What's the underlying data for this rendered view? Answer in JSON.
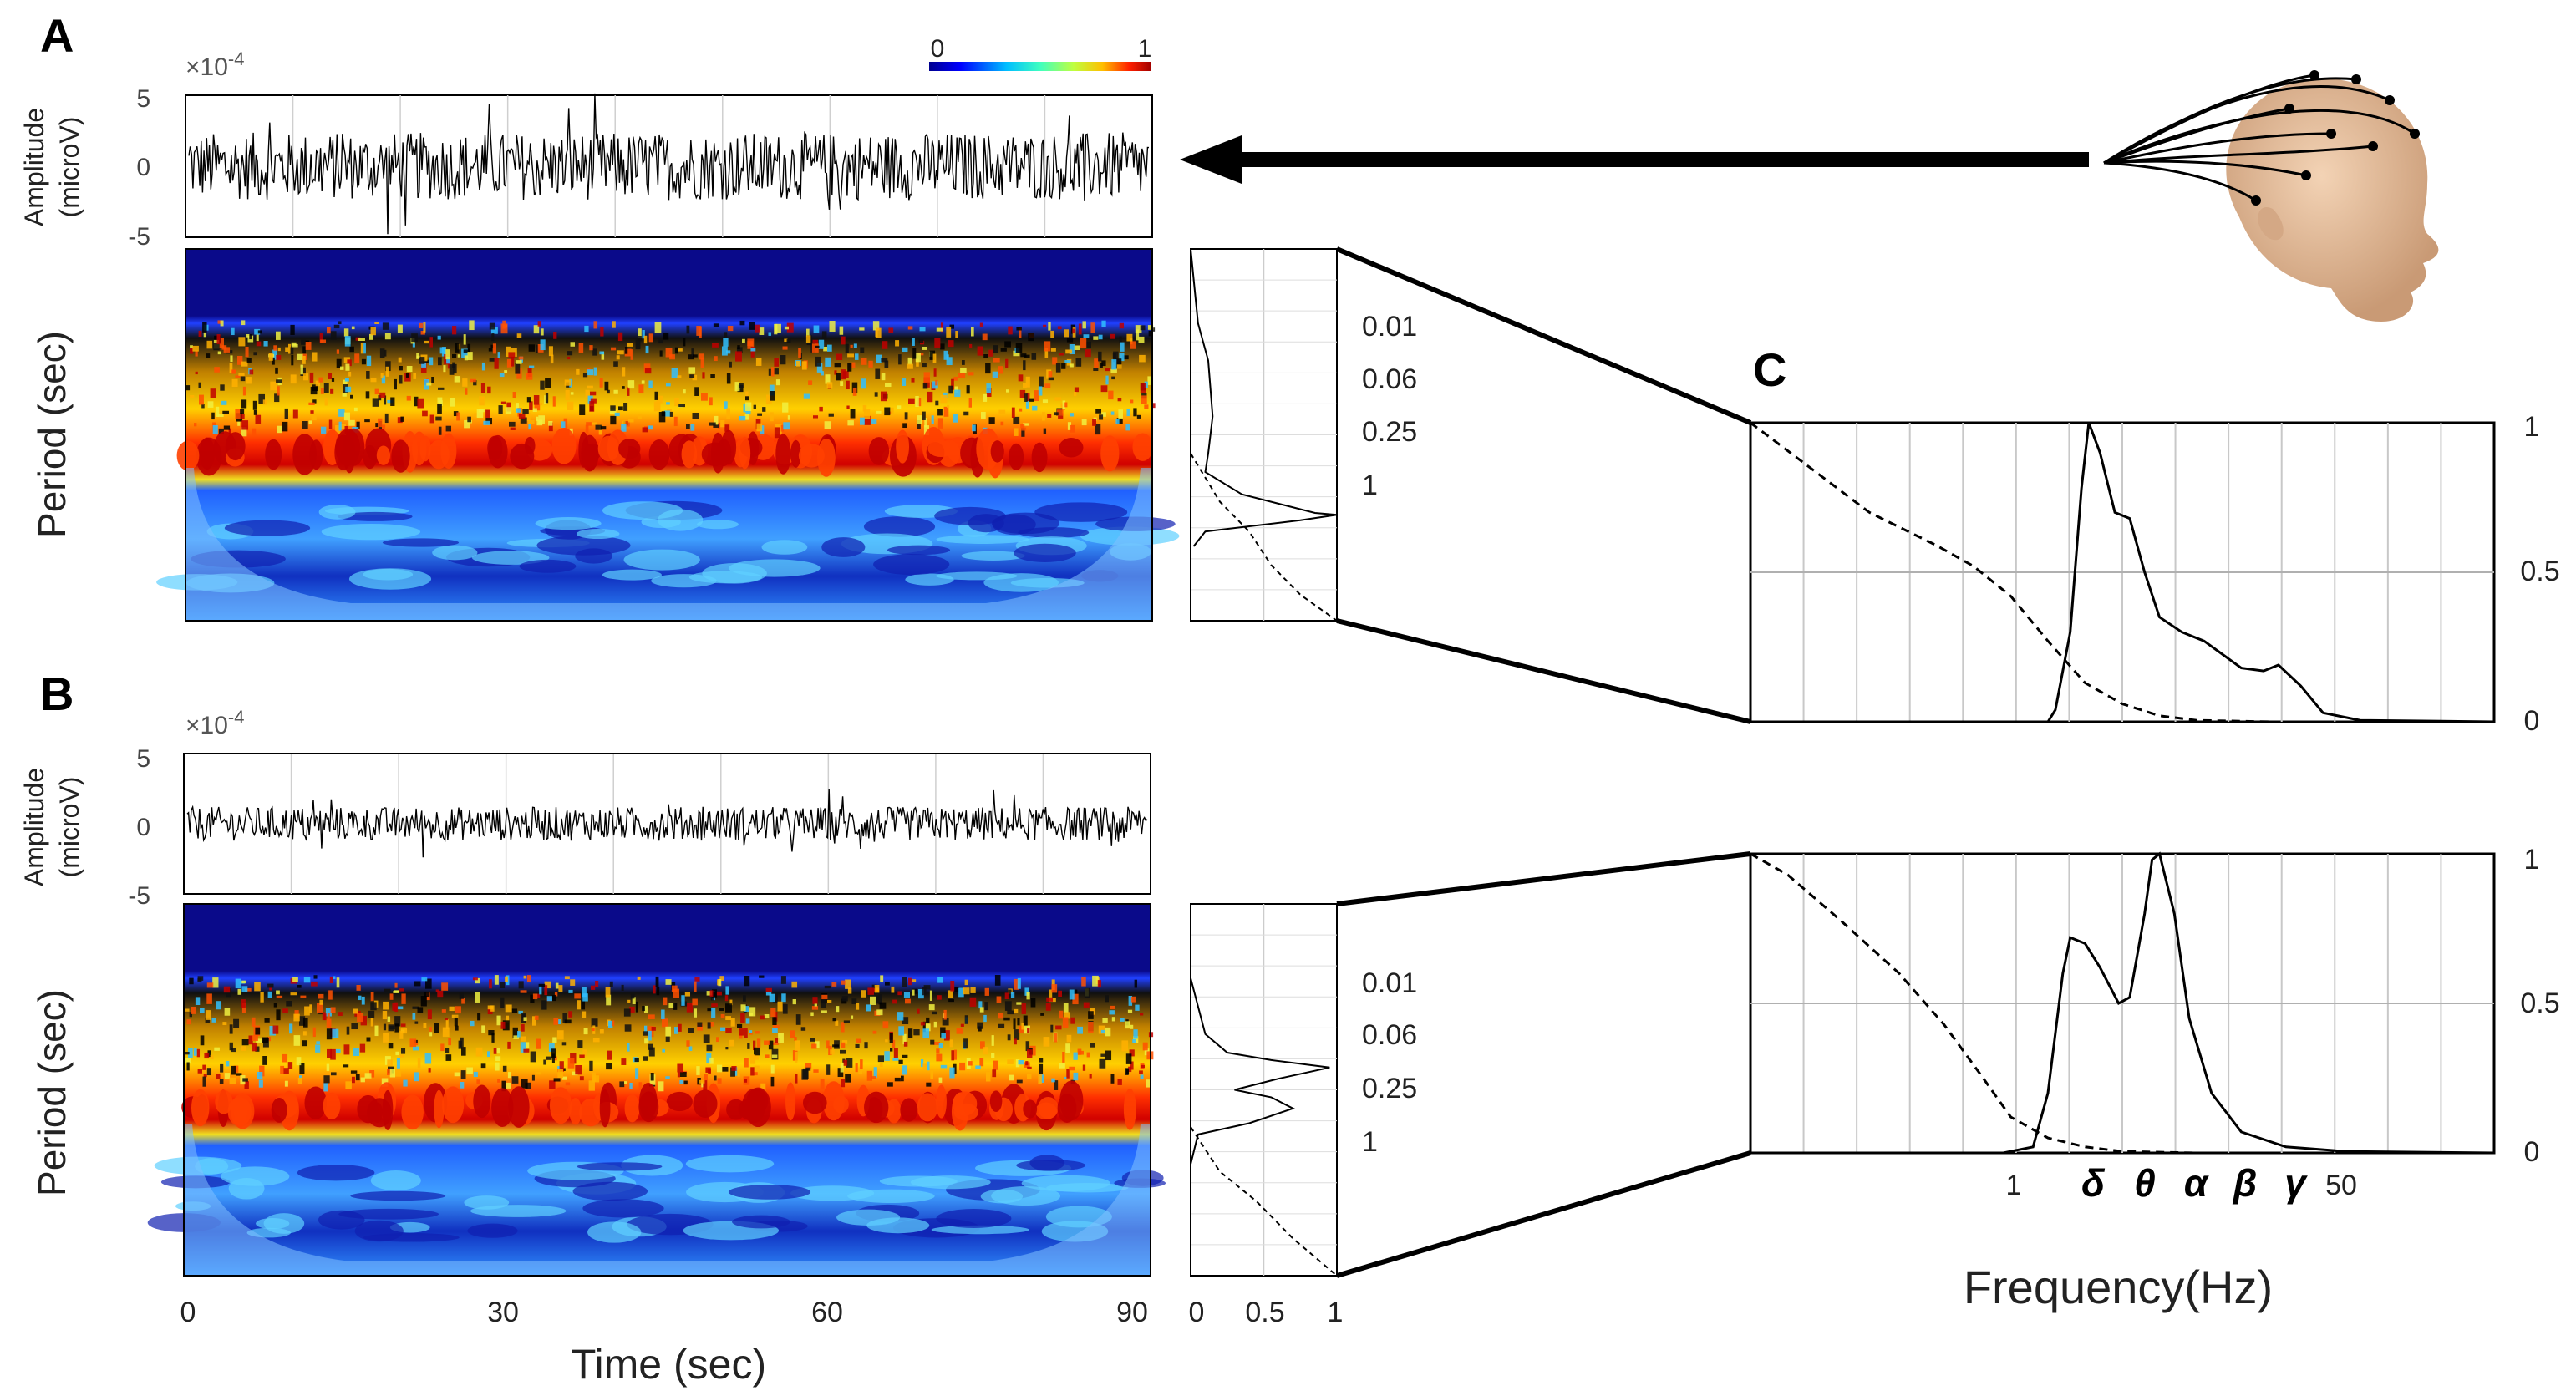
{
  "panels": {
    "a": "A",
    "b": "B",
    "c": "C"
  },
  "colorbar": {
    "min_label": "0",
    "max_label": "1",
    "colors": [
      "#00008f",
      "#0000ff",
      "#00bfff",
      "#40ffbf",
      "#bfff40",
      "#ffbf00",
      "#ff2000",
      "#a00000"
    ]
  },
  "amplitude": {
    "exponent_base": "×10",
    "exponent_power": "-4",
    "ylabel_line1": "Amplitude",
    "ylabel_line2": "(microV)",
    "yticks": [
      "5",
      "0",
      "-5"
    ]
  },
  "wavelet": {
    "ylabel": "Period (sec)"
  },
  "time_axis": {
    "xlabel": "Time (sec)",
    "xticks": [
      "0",
      "30",
      "60",
      "90"
    ]
  },
  "spectrum_small": {
    "period_ticks": [
      "0.01",
      "0.06",
      "0.25",
      "1"
    ],
    "xticks": [
      "0",
      "0.5",
      "1"
    ]
  },
  "panel_c": {
    "yticks": [
      "1",
      "0.5",
      "0"
    ],
    "xticks": [
      "1",
      "50"
    ],
    "bands": [
      "δ",
      "θ",
      "α",
      "β",
      "γ"
    ],
    "xlabel": "Frequency(Hz)"
  },
  "chart_data": [
    {
      "type": "line",
      "panel": "A",
      "name": "",
      "x_range": [
        0,
        90
      ],
      "ylim": [
        -5,
        5
      ],
      "y_scale": "×10^-4",
      "description_values": {
        "envelope_max": 4.5,
        "envelope_min": -3.5
      }
    },
    {
      "type": "heatmap",
      "panel": "A",
      "name": "",
      "x_range": [
        0,
        90
      ],
      "color_range": [
        0,
        1
      ]
    },
    {
      "type": "line",
      "panel": "A-spectrum",
      "y_ticks": [
        "0.01",
        "0.06",
        "0.25",
        "1"
      ],
      "xlim": [
        0,
        1
      ],
      "series": [
        {
          "name": "",
          "style": "solid",
          "points": [
            [
              0,
              0.0
            ],
            [
              0.05,
              0.2
            ],
            [
              0.12,
              0.3
            ],
            [
              0.15,
              0.45
            ],
            [
              0.12,
              0.55
            ],
            [
              0.1,
              0.6
            ],
            [
              0.35,
              0.66
            ],
            [
              0.85,
              0.71
            ],
            [
              1,
              0.715
            ],
            [
              0.75,
              0.73
            ],
            [
              0.1,
              0.76
            ],
            [
              0.02,
              0.8
            ]
          ]
        },
        {
          "name": "",
          "style": "dashed",
          "points": [
            [
              0,
              0.55
            ],
            [
              0.2,
              0.68
            ],
            [
              0.4,
              0.76
            ],
            [
              0.55,
              0.85
            ],
            [
              0.75,
              0.93
            ],
            [
              1,
              1
            ]
          ]
        }
      ]
    },
    {
      "type": "line",
      "panel": "B",
      "name": "",
      "x_range": [
        0,
        90
      ],
      "ylim": [
        -5,
        5
      ],
      "y_scale": "×10^-4",
      "description_values": {
        "envelope_max": 2.5,
        "envelope_min": -2.5
      }
    },
    {
      "type": "heatmap",
      "panel": "B",
      "name": "",
      "x_range": [
        0,
        90
      ],
      "color_range": [
        0,
        1
      ]
    },
    {
      "type": "line",
      "panel": "B-spectrum",
      "y_ticks": [
        "0.01",
        "0.06",
        "0.25",
        "1"
      ],
      "xlim": [
        0,
        1
      ],
      "series": [
        {
          "name": "",
          "style": "solid",
          "points": [
            [
              0,
              0.2
            ],
            [
              0.1,
              0.35
            ],
            [
              0.25,
              0.4
            ],
            [
              0.55,
              0.42
            ],
            [
              0.95,
              0.44
            ],
            [
              0.6,
              0.47
            ],
            [
              0.3,
              0.5
            ],
            [
              0.55,
              0.52
            ],
            [
              0.7,
              0.55
            ],
            [
              0.4,
              0.59
            ],
            [
              0.05,
              0.62
            ],
            [
              0,
              0.7
            ]
          ]
        },
        {
          "name": "",
          "style": "dashed",
          "points": [
            [
              0,
              0.6
            ],
            [
              0.2,
              0.72
            ],
            [
              0.45,
              0.8
            ],
            [
              0.7,
              0.9
            ],
            [
              1,
              1
            ]
          ]
        }
      ]
    },
    {
      "type": "line",
      "panel": "C-top",
      "x_ticks": [
        "1",
        "50"
      ],
      "ylim": [
        0,
        1
      ],
      "series": [
        {
          "name": "",
          "style": "solid",
          "points": [
            [
              0,
              0
            ],
            [
              0.4,
              0
            ],
            [
              0.41,
              0.04
            ],
            [
              0.43,
              0.3
            ],
            [
              0.445,
              0.78
            ],
            [
              0.455,
              1
            ],
            [
              0.47,
              0.9
            ],
            [
              0.49,
              0.7
            ],
            [
              0.51,
              0.68
            ],
            [
              0.53,
              0.5
            ],
            [
              0.55,
              0.35
            ],
            [
              0.58,
              0.3
            ],
            [
              0.61,
              0.27
            ],
            [
              0.66,
              0.18
            ],
            [
              0.69,
              0.17
            ],
            [
              0.71,
              0.19
            ],
            [
              0.74,
              0.12
            ],
            [
              0.77,
              0.03
            ],
            [
              0.82,
              0.005
            ],
            [
              1,
              0
            ]
          ]
        },
        {
          "name": "",
          "style": "dashed",
          "points": [
            [
              0,
              1
            ],
            [
              0.08,
              0.85
            ],
            [
              0.16,
              0.7
            ],
            [
              0.25,
              0.59
            ],
            [
              0.3,
              0.52
            ],
            [
              0.35,
              0.42
            ],
            [
              0.4,
              0.27
            ],
            [
              0.45,
              0.13
            ],
            [
              0.5,
              0.06
            ],
            [
              0.55,
              0.02
            ],
            [
              0.6,
              0.005
            ],
            [
              0.7,
              0
            ]
          ]
        }
      ]
    },
    {
      "type": "line",
      "panel": "C-bottom",
      "x_ticks": [
        "1",
        "50"
      ],
      "ylim": [
        0,
        1
      ],
      "series": [
        {
          "name": "",
          "style": "solid",
          "points": [
            [
              0,
              0
            ],
            [
              0.34,
              0
            ],
            [
              0.38,
              0.02
            ],
            [
              0.4,
              0.2
            ],
            [
              0.42,
              0.6
            ],
            [
              0.43,
              0.72
            ],
            [
              0.45,
              0.7
            ],
            [
              0.47,
              0.62
            ],
            [
              0.495,
              0.5
            ],
            [
              0.51,
              0.52
            ],
            [
              0.53,
              0.8
            ],
            [
              0.54,
              0.98
            ],
            [
              0.55,
              1
            ],
            [
              0.57,
              0.8
            ],
            [
              0.59,
              0.45
            ],
            [
              0.62,
              0.2
            ],
            [
              0.66,
              0.07
            ],
            [
              0.72,
              0.02
            ],
            [
              0.8,
              0.005
            ],
            [
              1,
              0
            ]
          ]
        },
        {
          "name": "",
          "style": "dashed",
          "points": [
            [
              0,
              1
            ],
            [
              0.05,
              0.93
            ],
            [
              0.12,
              0.78
            ],
            [
              0.2,
              0.6
            ],
            [
              0.26,
              0.43
            ],
            [
              0.31,
              0.26
            ],
            [
              0.35,
              0.12
            ],
            [
              0.4,
              0.05
            ],
            [
              0.45,
              0.02
            ],
            [
              0.5,
              0.005
            ],
            [
              0.6,
              0
            ]
          ]
        }
      ]
    }
  ]
}
